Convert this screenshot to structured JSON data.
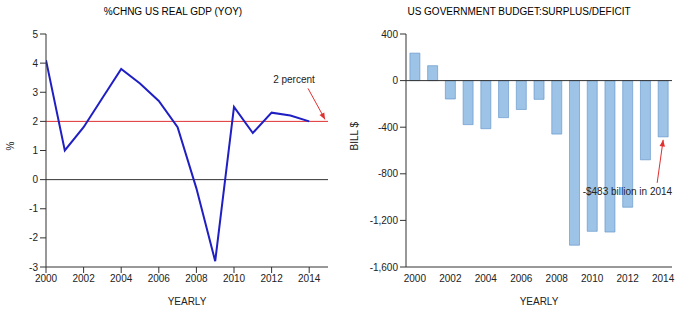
{
  "chart_data": [
    {
      "type": "line",
      "title": "%CHNG US REAL GDP (YOY)",
      "x_label": "YEARLY",
      "y_label": "%",
      "x": [
        2000,
        2001,
        2002,
        2003,
        2004,
        2005,
        2006,
        2007,
        2008,
        2009,
        2010,
        2011,
        2012,
        2013,
        2014
      ],
      "values": [
        4.1,
        1.0,
        1.8,
        2.8,
        3.8,
        3.3,
        2.7,
        1.8,
        -0.3,
        -2.8,
        2.5,
        1.6,
        2.3,
        2.2,
        2.0
      ],
      "color": "#1f1fc4",
      "xlim": [
        2000,
        2015
      ],
      "xticks": [
        2000,
        2002,
        2004,
        2006,
        2008,
        2010,
        2012,
        2014
      ],
      "ylim": [
        -3,
        5
      ],
      "yticks": [
        -3,
        -2,
        -1,
        0,
        1,
        2,
        3,
        4,
        5
      ],
      "reference_value": 2,
      "baseline": 0,
      "annotation": "2 percent"
    },
    {
      "type": "bar",
      "title": "US GOVERNMENT BUDGET:SURPLUS/DEFICIT",
      "x_label": "YEARLY",
      "y_label": "BILL $",
      "categories": [
        "2000",
        null,
        "2002",
        null,
        "2004",
        null,
        "2006",
        null,
        "2008",
        null,
        "2010",
        null,
        "2012",
        null,
        "2014"
      ],
      "values": [
        236,
        128,
        -158,
        -378,
        -413,
        -318,
        -248,
        -161,
        -459,
        -1413,
        -1294,
        -1300,
        -1087,
        -680,
        -483
      ],
      "color": "#9dc3e6",
      "ylim": [
        -1600,
        400
      ],
      "yticks": [
        {
          "value": -1600,
          "label": "-1,600"
        },
        {
          "value": -1200,
          "label": "-1,200"
        },
        -800,
        -400,
        0,
        400
      ],
      "baseline": 0,
      "annotation": "-$483 billion in 2014"
    }
  ]
}
